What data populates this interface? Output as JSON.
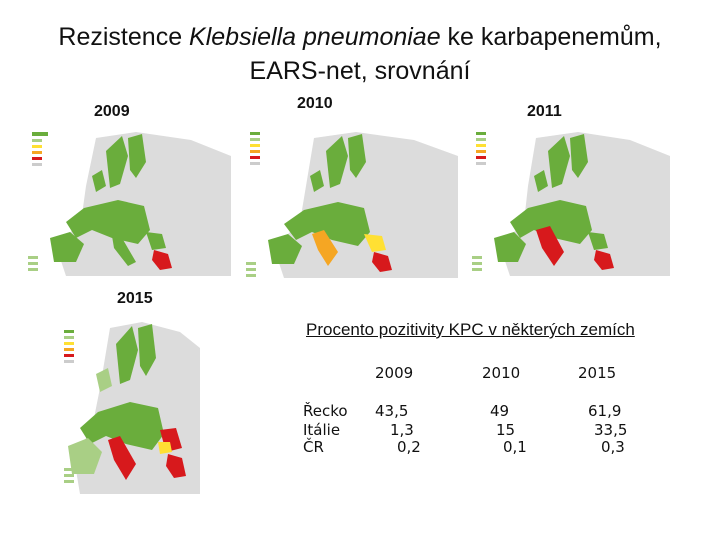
{
  "title": {
    "line1_a": "Rezistence ",
    "line1_italic": "Klebsiella pneumoniae",
    "line1_b": " ke karbapenemům,",
    "line2": "EARS-net, srovnání"
  },
  "maps": [
    {
      "year": "2009",
      "colors": {
        "base": "#6aad3c",
        "light": "#a9cf85",
        "orange": "#f5a623",
        "red": "#d7191c",
        "yellow": "#ffe033",
        "grey": "#cccccc"
      }
    },
    {
      "year": "2010"
    },
    {
      "year": "2011"
    },
    {
      "year": "2015"
    }
  ],
  "kpc_table": {
    "title": "Procento pozitivity KPC v některých zemích",
    "columns": [
      "2009",
      "2010",
      "2015"
    ],
    "rows": [
      {
        "country": "Řecko",
        "values": [
          "43,5",
          "49",
          "61,9"
        ]
      },
      {
        "country": "Itálie",
        "values": [
          "1,3",
          "15",
          "33,5"
        ]
      },
      {
        "country": "ČR",
        "values": [
          "0,2",
          "0,1",
          "0,3"
        ]
      }
    ]
  }
}
